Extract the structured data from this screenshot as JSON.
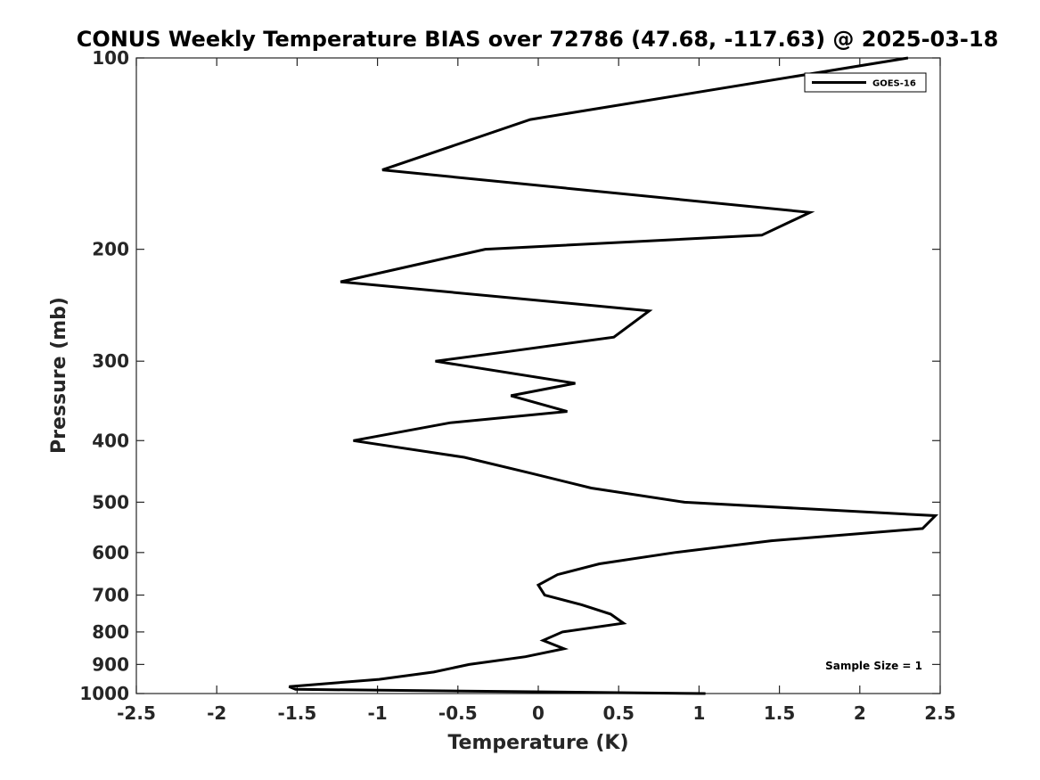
{
  "chart_data": {
    "type": "line",
    "title": "CONUS Weekly Temperature BIAS over 72786 (47.68, -117.63) @ 2025-03-18",
    "xlabel": "Temperature (K)",
    "ylabel": "Pressure (mb)",
    "xlim": [
      -2.5,
      2.5
    ],
    "ylim": [
      100,
      1000
    ],
    "y_scale": "log",
    "y_reversed": true,
    "x_ticks": [
      -2.5,
      -2,
      -1.5,
      -1,
      -0.5,
      0,
      0.5,
      1,
      1.5,
      2,
      2.5
    ],
    "x_tick_labels": [
      "-2.5",
      "-2",
      "-1.5",
      "-1",
      "-0.5",
      "0",
      "0.5",
      "1",
      "1.5",
      "2",
      "2.5"
    ],
    "y_ticks": [
      100,
      200,
      300,
      400,
      500,
      600,
      700,
      800,
      900,
      1000
    ],
    "y_tick_labels": [
      "100",
      "200",
      "300",
      "400",
      "500",
      "600",
      "700",
      "800",
      "900",
      "1000"
    ],
    "grid": false,
    "legend_position": "top-right",
    "series": [
      {
        "name": "GOES-16",
        "color": "#000000",
        "points": [
          {
            "t": 2.3,
            "p": 100
          },
          {
            "t": -0.05,
            "p": 125
          },
          {
            "t": -0.97,
            "p": 150
          },
          {
            "t": 1.69,
            "p": 175
          },
          {
            "t": 1.39,
            "p": 190
          },
          {
            "t": -0.33,
            "p": 200
          },
          {
            "t": -1.23,
            "p": 225
          },
          {
            "t": 0.69,
            "p": 250
          },
          {
            "t": 0.47,
            "p": 275
          },
          {
            "t": -0.2,
            "p": 290
          },
          {
            "t": -0.64,
            "p": 300
          },
          {
            "t": 0.23,
            "p": 325
          },
          {
            "t": -0.17,
            "p": 340
          },
          {
            "t": 0.18,
            "p": 360
          },
          {
            "t": -0.55,
            "p": 375
          },
          {
            "t": -1.15,
            "p": 400
          },
          {
            "t": -0.46,
            "p": 425
          },
          {
            "t": -0.05,
            "p": 450
          },
          {
            "t": 0.33,
            "p": 475
          },
          {
            "t": 0.91,
            "p": 500
          },
          {
            "t": 2.47,
            "p": 525
          },
          {
            "t": 2.39,
            "p": 550
          },
          {
            "t": 1.45,
            "p": 575
          },
          {
            "t": 0.85,
            "p": 600
          },
          {
            "t": 0.38,
            "p": 625
          },
          {
            "t": 0.12,
            "p": 650
          },
          {
            "t": 0.0,
            "p": 675
          },
          {
            "t": 0.04,
            "p": 700
          },
          {
            "t": 0.27,
            "p": 725
          },
          {
            "t": 0.45,
            "p": 750
          },
          {
            "t": 0.53,
            "p": 775
          },
          {
            "t": 0.15,
            "p": 800
          },
          {
            "t": 0.03,
            "p": 825
          },
          {
            "t": 0.16,
            "p": 850
          },
          {
            "t": -0.08,
            "p": 875
          },
          {
            "t": -0.43,
            "p": 900
          },
          {
            "t": -0.65,
            "p": 925
          },
          {
            "t": -0.99,
            "p": 950
          },
          {
            "t": -1.55,
            "p": 975
          },
          {
            "t": -1.51,
            "p": 985
          },
          {
            "t": 1.04,
            "p": 1000
          }
        ]
      }
    ],
    "annotations": [
      {
        "text": "Sample Size = 1",
        "position": "bottom-right"
      }
    ]
  }
}
